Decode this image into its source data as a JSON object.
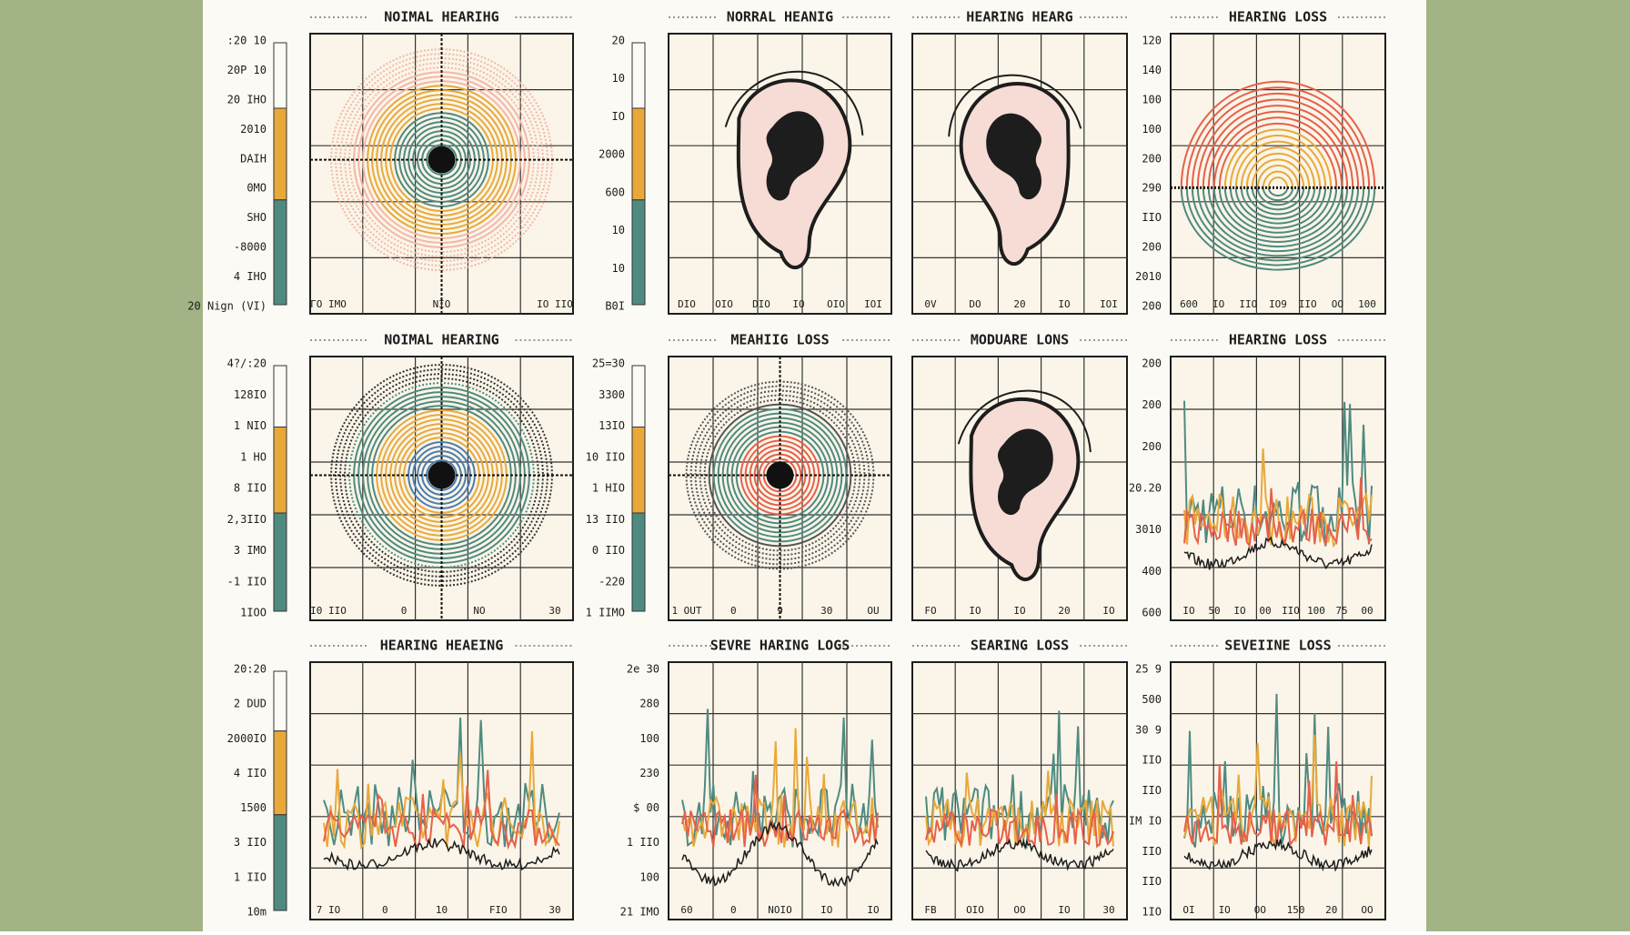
{
  "panels": [
    {
      "title": "NOIMAL HEARIHG",
      "left_labels": [
        ":20 10",
        "20P 10",
        "20 IHO",
        "2010",
        "DAIH",
        "0MO",
        "SHO",
        "-8000",
        "4 IHO",
        "20 Nign (VI)"
      ],
      "bottom_labels": [
        "ΓO IMO",
        "NIO",
        "IO IIO"
      ]
    },
    {
      "title": "NORRAL HEANIG",
      "left_labels": [
        "20",
        "10",
        "IO",
        "2000",
        "600",
        "10",
        "10",
        "B0I"
      ],
      "bottom_labels": [
        "DIO",
        "OIO",
        "DIO",
        "IO",
        "OIO",
        "IOI"
      ]
    },
    {
      "title": "HEARING HEARG",
      "left_labels": [],
      "bottom_labels": [
        "0V",
        "DO",
        "20",
        "IO",
        "IOI"
      ]
    },
    {
      "title": "HEARING LOSS",
      "left_labels": [
        "120",
        "140",
        "100",
        "100",
        "200",
        "290",
        "IIO",
        "200",
        "2010",
        "200"
      ],
      "bottom_labels": [
        "600",
        "IO",
        "IIO",
        "IO9",
        "IIO",
        "OO",
        "100"
      ]
    },
    {
      "title": "NOIMAL HEARING",
      "left_labels": [
        "4?/:20",
        "128IO",
        "1 NIO",
        "1 HO",
        "8 IIO",
        "2,3IIO",
        "3 IMO",
        "-1 IIO",
        "1IOO"
      ],
      "bottom_labels": [
        "I0 IIO",
        "0",
        "NO",
        "30"
      ]
    },
    {
      "title": "MEAHIIG LOSS",
      "left_labels": [
        "25=30",
        "3300",
        "13IO",
        "10 IIO",
        "1 HIO",
        "13 IIO",
        "0 IIO",
        "-220",
        "1 IIMO"
      ],
      "bottom_labels": [
        "1 OUT",
        "0",
        "9",
        "30",
        "OU"
      ]
    },
    {
      "title": "MODUARE LONS",
      "left_labels": [],
      "bottom_labels": [
        "FO",
        "IO",
        "IO",
        "20",
        "IO"
      ]
    },
    {
      "title": "HEARING LOSS",
      "left_labels": [
        "200",
        "200",
        "200",
        "20.20",
        "3010",
        "400",
        "600"
      ],
      "bottom_labels": [
        "IO",
        "50",
        "IO",
        "00",
        "IIO",
        "100",
        "75",
        "00"
      ]
    },
    {
      "title": "HEARING HEAEING",
      "left_labels": [
        "20:20",
        "2 DUD",
        "2000IO",
        "4 IIO",
        "1500",
        "3 IIO",
        "1 IIO",
        "10m"
      ],
      "bottom_labels": [
        "7 IO",
        "0",
        "10",
        "FIO",
        "30"
      ]
    },
    {
      "title": "SEVRE HARING LOGS",
      "left_labels": [
        "2e 30",
        "280",
        "100",
        "230",
        "$ 00",
        "1 IIO",
        "100",
        "21 IMO"
      ],
      "bottom_labels": [
        "60",
        "0",
        "NOIO",
        "IO",
        "IO"
      ]
    },
    {
      "title": "SEARING LOSS",
      "left_labels": [],
      "bottom_labels": [
        "FB",
        "OIO",
        "OO",
        "IO",
        "30"
      ]
    },
    {
      "title": "SEVEIINE LOSS",
      "left_labels": [
        "25 9",
        "500",
        "30 9",
        "IIO",
        "IIO",
        "IM IO",
        "IIO",
        "IIO",
        "1IO"
      ],
      "bottom_labels": [
        "OI",
        "IO",
        "OO",
        "150",
        "20",
        "OO"
      ]
    }
  ]
}
